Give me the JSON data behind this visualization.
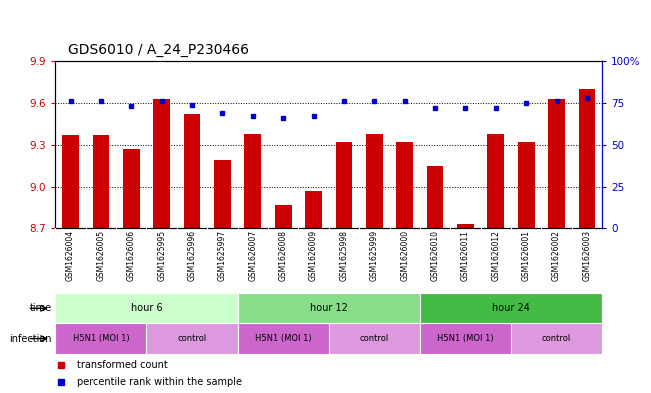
{
  "title": "GDS6010 / A_24_P230466",
  "samples": [
    "GSM1626004",
    "GSM1626005",
    "GSM1626006",
    "GSM1625995",
    "GSM1625996",
    "GSM1625997",
    "GSM1626007",
    "GSM1626008",
    "GSM1626009",
    "GSM1625998",
    "GSM1625999",
    "GSM1626000",
    "GSM1626010",
    "GSM1626011",
    "GSM1626012",
    "GSM1626001",
    "GSM1626002",
    "GSM1626003"
  ],
  "bar_values": [
    9.37,
    9.37,
    9.27,
    9.63,
    9.52,
    9.19,
    9.38,
    8.87,
    8.97,
    9.32,
    9.38,
    9.32,
    9.15,
    8.73,
    9.38,
    9.32,
    9.63,
    9.7
  ],
  "dot_values": [
    76,
    76,
    73,
    76,
    74,
    69,
    67,
    66,
    67,
    76,
    76,
    76,
    72,
    72,
    72,
    75,
    76,
    78
  ],
  "ylim_left": [
    8.7,
    9.9
  ],
  "ylim_right": [
    0,
    100
  ],
  "yticks_left": [
    8.7,
    9.0,
    9.3,
    9.6,
    9.9
  ],
  "yticks_right": [
    0,
    25,
    50,
    75,
    100
  ],
  "bar_color": "#cc0000",
  "dot_color": "#0000cc",
  "bar_bottom": 8.7,
  "time_groups": [
    {
      "label": "hour 6",
      "start": 0,
      "end": 6,
      "color": "#ccffcc"
    },
    {
      "label": "hour 12",
      "start": 6,
      "end": 12,
      "color": "#88dd88"
    },
    {
      "label": "hour 24",
      "start": 12,
      "end": 18,
      "color": "#44bb44"
    }
  ],
  "infection_groups": [
    {
      "label": "H5N1 (MOI 1)",
      "start": 0,
      "end": 3,
      "color": "#cc66cc"
    },
    {
      "label": "control",
      "start": 3,
      "end": 6,
      "color": "#dd99dd"
    },
    {
      "label": "H5N1 (MOI 1)",
      "start": 6,
      "end": 9,
      "color": "#cc66cc"
    },
    {
      "label": "control",
      "start": 9,
      "end": 12,
      "color": "#dd99dd"
    },
    {
      "label": "H5N1 (MOI 1)",
      "start": 12,
      "end": 15,
      "color": "#cc66cc"
    },
    {
      "label": "control",
      "start": 15,
      "end": 18,
      "color": "#dd99dd"
    }
  ],
  "legend_items": [
    {
      "label": "transformed count",
      "color": "#cc0000"
    },
    {
      "label": "percentile rank within the sample",
      "color": "#0000cc"
    }
  ],
  "bg_color": "#ffffff",
  "plot_bg_color": "#ffffff",
  "tick_label_color_left": "#cc0000",
  "tick_label_color_right": "#0000cc",
  "title_fontsize": 10,
  "axis_fontsize": 7.5,
  "bar_width": 0.55,
  "sample_bg": "#cccccc",
  "gridline_color": "#000000"
}
